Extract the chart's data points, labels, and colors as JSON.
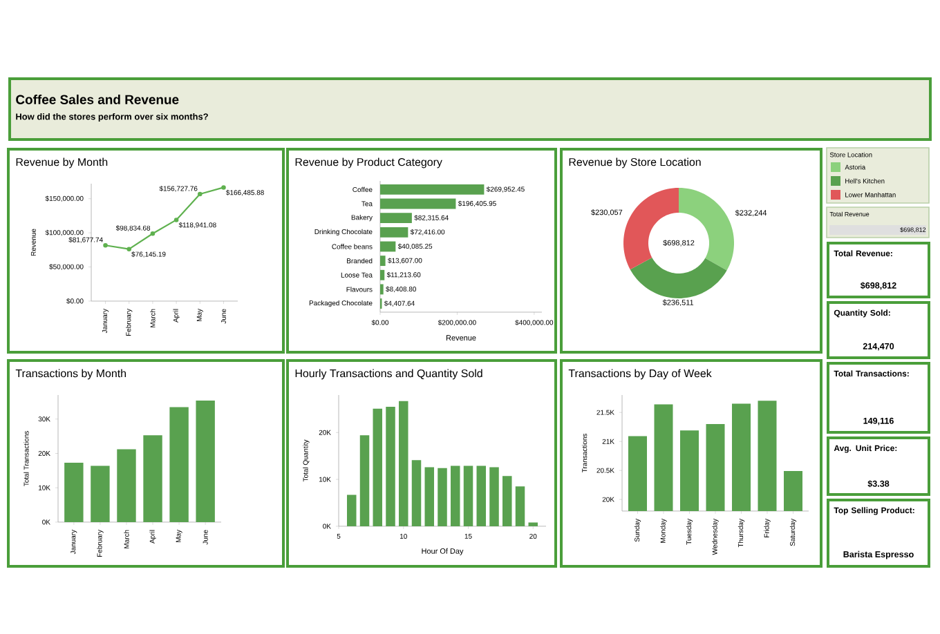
{
  "chart_data": [
    {
      "type": "other",
      "title": "Coffee Sales and Revenue",
      "subtitle": "How did the stores perform over six months?"
    },
    {
      "type": "line",
      "title": "Revenue by Month",
      "ylabel": "Revenue",
      "categories": [
        "January",
        "February",
        "March",
        "April",
        "May",
        "June"
      ],
      "values": [
        81677.74,
        76145.19,
        98834.68,
        118941.08,
        156727.76,
        166485.88
      ],
      "color": "#5fb14f",
      "marker": "circle",
      "ylim": [
        0,
        172000
      ],
      "yticks": [
        {
          "value": 0,
          "label": "$0.00"
        },
        {
          "value": 50000,
          "label": "$50,000.00"
        },
        {
          "value": 100000,
          "label": "$100,000.00"
        },
        {
          "value": 150000,
          "label": "$150,000.00"
        }
      ],
      "value_labels": [
        "$81,677.74",
        "$76,145.19",
        "$98,834.68",
        "$118,941.08",
        "$156,727.76",
        "$166,485.88"
      ]
    },
    {
      "type": "bar",
      "orientation": "horizontal",
      "title": "Revenue by Product Category",
      "xlabel": "Revenue",
      "categories": [
        "Coffee",
        "Tea",
        "Bakery",
        "Drinking Chocolate",
        "Coffee beans",
        "Branded",
        "Loose Tea",
        "Flavours",
        "Packaged Chocolate"
      ],
      "values": [
        269952.45,
        196405.95,
        82315.64,
        72416.0,
        40085.25,
        13607.0,
        11213.6,
        8408.8,
        4407.64
      ],
      "color": "#59a14f",
      "xlim": [
        0,
        420000
      ],
      "xticks": [
        {
          "value": 0,
          "label": "$0.00"
        },
        {
          "value": 200000,
          "label": "$200,000.00"
        },
        {
          "value": 400000,
          "label": "$400,000.00"
        }
      ],
      "value_labels": [
        "$269,952.45",
        "$196,405.95",
        "$82,315.64",
        "$72,416.00",
        "$40,085.25",
        "$13,607.00",
        "$11,213.60",
        "$8,408.80",
        "$4,407.64"
      ]
    },
    {
      "type": "donut",
      "title": "Revenue by Store Location",
      "categories": [
        "Astoria",
        "Hell's Kitchen",
        "Lower Manhattan"
      ],
      "values": [
        232244,
        236511,
        230057
      ],
      "colors": [
        "#8cd17d",
        "#59a14f",
        "#e15759"
      ],
      "legend": "right",
      "legend_title": "Store Location",
      "value_labels": [
        "$232,244",
        "$236,511",
        "$230,057"
      ],
      "annotations": [
        "$698,812"
      ]
    },
    {
      "type": "other",
      "annotations": [
        "Total Revenue",
        "$698,812",
        "Total Revenue:",
        "$698,812",
        "Quantity Sold:",
        "214,470",
        "Total Transactions:",
        "149,116",
        "Avg. Unit Price:",
        "$3.38",
        "Top Selling Product:",
        "Barista Espresso"
      ]
    },
    {
      "type": "bar",
      "title": "Transactions by Month",
      "ylabel": "Total Transactions",
      "categories": [
        "January",
        "February",
        "March",
        "April",
        "May",
        "June"
      ],
      "values": [
        17300,
        16400,
        21200,
        25300,
        33500,
        35400
      ],
      "color": "#59a14f",
      "ylim": [
        0,
        37000
      ],
      "yticks": [
        {
          "value": 0,
          "label": "0K"
        },
        {
          "value": 10000,
          "label": "10K"
        },
        {
          "value": 20000,
          "label": "20K"
        },
        {
          "value": 30000,
          "label": "30K"
        }
      ]
    },
    {
      "type": "bar",
      "title": "Hourly Transactions and Quantity Sold",
      "xlabel": "Hour Of Day",
      "ylabel": "Total Quantity",
      "x": [
        6,
        7,
        8,
        9,
        10,
        11,
        12,
        13,
        14,
        15,
        16,
        17,
        18,
        19,
        20
      ],
      "values": [
        6700,
        19400,
        25100,
        25500,
        26700,
        14100,
        12600,
        12400,
        12900,
        12900,
        12900,
        12600,
        10700,
        8500,
        800
      ],
      "color": "#59a14f",
      "xlim": [
        5,
        21
      ],
      "xticks": [
        5,
        10,
        15,
        20
      ],
      "ylim": [
        0,
        28000
      ],
      "yticks": [
        {
          "value": 0,
          "label": "0K"
        },
        {
          "value": 10000,
          "label": "10K"
        },
        {
          "value": 20000,
          "label": "20K"
        }
      ]
    },
    {
      "type": "bar",
      "title": "Transactions by Day of Week",
      "ylabel": "Transactions",
      "categories": [
        "Sunday",
        "Monday",
        "Tuesday",
        "Wednesday",
        "Thursday",
        "Friday",
        "Saturday"
      ],
      "values": [
        21090,
        21640,
        21190,
        21300,
        21650,
        21700,
        20490
      ],
      "color": "#59a14f",
      "ylim": [
        19800,
        21800
      ],
      "yticks": [
        {
          "value": 20000,
          "label": "20K"
        },
        {
          "value": 20500,
          "label": "20.5K"
        },
        {
          "value": 21000,
          "label": "21K"
        },
        {
          "value": 21500,
          "label": "21.5K"
        }
      ]
    }
  ]
}
